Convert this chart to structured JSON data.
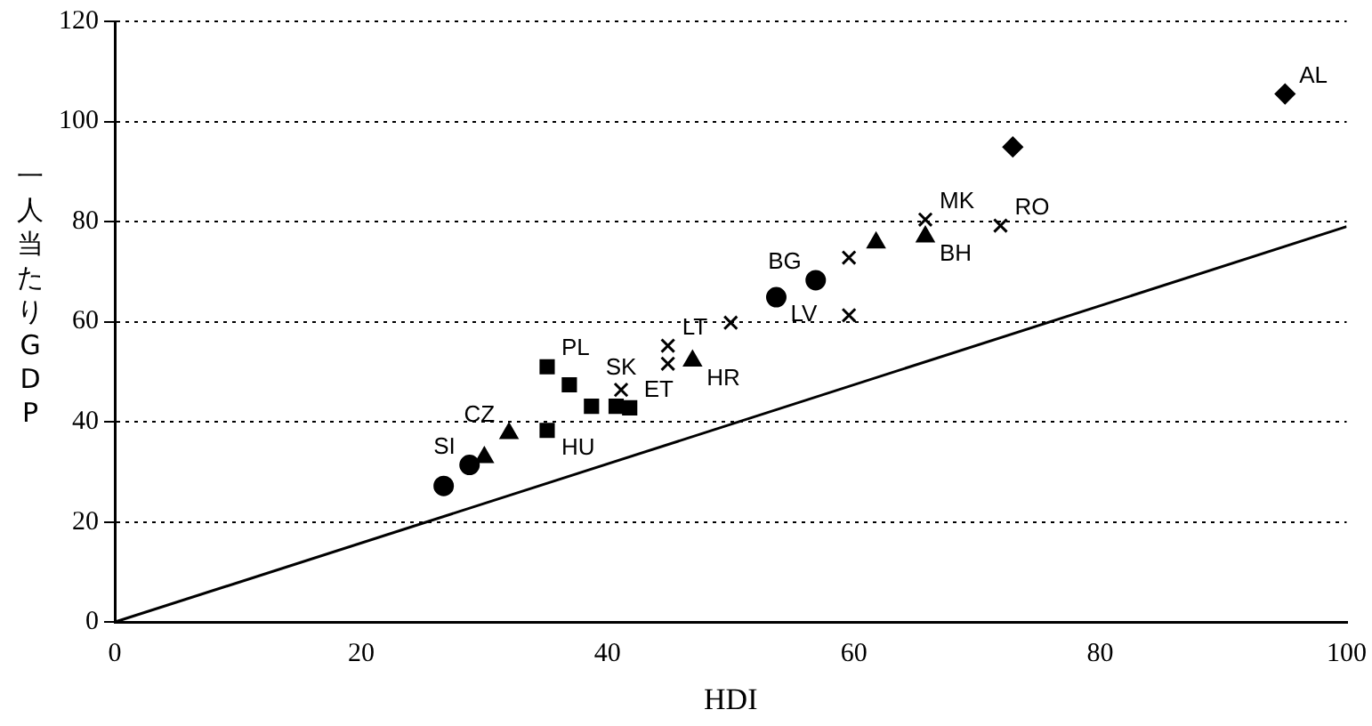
{
  "chart_data": {
    "type": "scatter",
    "xlabel": "HDI",
    "ylabel": "一人当たりGDP",
    "xlim": [
      0,
      100
    ],
    "ylim": [
      0,
      120
    ],
    "xticks": [
      0,
      20,
      40,
      60,
      80,
      100
    ],
    "yticks": [
      0,
      20,
      40,
      60,
      80,
      100,
      120
    ],
    "grid": "y",
    "legend": false,
    "series": [
      {
        "name": "AL",
        "color": "#000000",
        "marker": "diamond",
        "x": [
          72.9,
          95.0
        ],
        "values": [
          94.9,
          105.5
        ]
      },
      {
        "name": "MK",
        "color": "#000000",
        "marker": "cross",
        "x": [
          59.6,
          65.8
        ],
        "values": [
          72.8,
          80.4
        ]
      },
      {
        "name": "BH",
        "color": "#000000",
        "marker": "triangle",
        "x": [
          61.8,
          65.8
        ],
        "values": [
          75.8,
          77.0
        ]
      },
      {
        "name": "RO",
        "color": "#000000",
        "marker": "cross",
        "x": [
          59.6,
          71.9
        ],
        "values": [
          61.3,
          79.2
        ]
      },
      {
        "name": "BG",
        "color": "#000000",
        "marker": "circle",
        "x": [
          56.9
        ],
        "values": [
          68.3
        ]
      },
      {
        "name": "LV",
        "color": "#000000",
        "marker": "circle",
        "x": [
          53.7
        ],
        "values": [
          64.9
        ]
      },
      {
        "color": "#000000",
        "marker": "cross",
        "x": [
          50.0
        ],
        "values": [
          59.8
        ]
      },
      {
        "name": "LT",
        "color": "#000000",
        "marker": "cross",
        "x": [
          44.9,
          44.9
        ],
        "values": [
          51.6,
          55.2
        ]
      },
      {
        "name": "HR",
        "color": "#000000",
        "marker": "triangle",
        "x": [
          46.9
        ],
        "values": [
          52.2
        ]
      },
      {
        "name": "SK",
        "color": "#000000",
        "marker": "cross",
        "x": [
          41.1
        ],
        "values": [
          46.4
        ]
      },
      {
        "name": "ET",
        "color": "#000000",
        "marker": "square",
        "x": [
          38.7,
          41.8
        ],
        "values": [
          43.1,
          42.8
        ]
      },
      {
        "name": "HU",
        "color": "#000000",
        "marker": "square",
        "x": [
          35.1,
          40.7
        ],
        "values": [
          38.3,
          43.1
        ]
      },
      {
        "name": "PL",
        "color": "#000000",
        "marker": "square",
        "x": [
          35.1,
          36.9
        ],
        "values": [
          51.0,
          47.4
        ]
      },
      {
        "name": "CZ",
        "color": "#000000",
        "marker": "triangle",
        "x": [
          30.0,
          32.0
        ],
        "values": [
          32.9,
          37.7
        ]
      },
      {
        "name": "SI",
        "color": "#000000",
        "marker": "circle",
        "x": [
          26.7,
          28.8
        ],
        "values": [
          27.2,
          31.4
        ]
      },
      {
        "type": "line",
        "color": "#000000",
        "marker": "none",
        "x": [
          0,
          100
        ],
        "values": [
          0,
          79
        ]
      }
    ]
  }
}
